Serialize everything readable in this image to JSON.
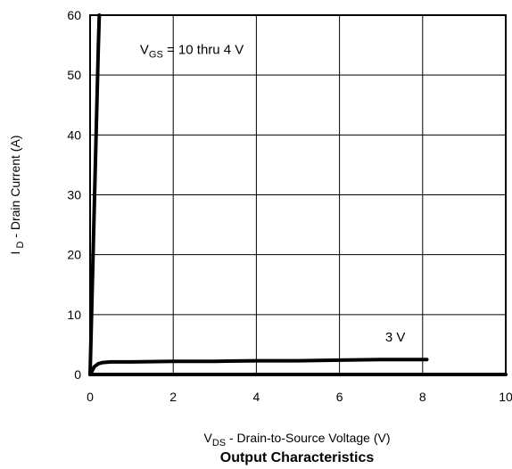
{
  "chart_data": {
    "type": "line",
    "title": "Output Characteristics",
    "xlabel": {
      "main": "V",
      "sub": "DS",
      "rest": " - Drain-to-Source Voltage (V)"
    },
    "ylabel": {
      "main": "I",
      "sub": " D",
      "rest": " - Drain Current (A)"
    },
    "xlim": [
      0,
      10
    ],
    "ylim": [
      0,
      60
    ],
    "xticks": [
      "0",
      "2",
      "4",
      "6",
      "8",
      "10"
    ],
    "yticks": [
      "0",
      "10",
      "20",
      "30",
      "40",
      "50",
      "60"
    ],
    "grid": true,
    "series": [
      {
        "name": "VGS = 10 thru 4 V",
        "x": [
          0.0,
          0.1,
          0.2,
          0.22
        ],
        "y": [
          0.0,
          28,
          55,
          60
        ]
      },
      {
        "name": "3 V",
        "x": [
          0.0,
          0.05,
          0.1,
          0.2,
          0.3,
          0.5,
          1.0,
          2.0,
          3.0,
          4.0,
          5.0,
          6.0,
          7.0,
          8.0,
          8.1
        ],
        "y": [
          0.0,
          0.6,
          1.3,
          1.8,
          2.0,
          2.1,
          2.1,
          2.2,
          2.2,
          2.3,
          2.3,
          2.4,
          2.5,
          2.5,
          2.5
        ]
      },
      {
        "name": "",
        "x": [
          0.0,
          10.0
        ],
        "y": [
          0.0,
          0.0
        ]
      }
    ],
    "annotations": [
      {
        "main": "V",
        "sub": "GS",
        "rest": " = 10 thru 4 V",
        "x": 1.2,
        "y": 53.5
      },
      {
        "main": "3 V",
        "sub": "",
        "rest": "",
        "x": 7.1,
        "y": 5.5
      }
    ]
  }
}
